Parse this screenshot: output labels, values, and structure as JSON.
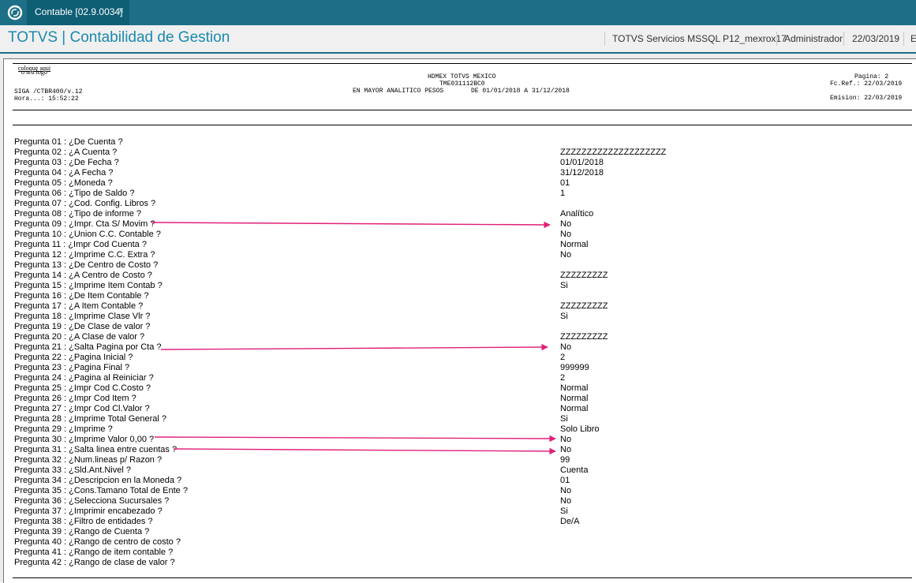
{
  "window": {
    "tab_label": "Contable [02.9.0034]",
    "tab_close": "×"
  },
  "header": {
    "app_title": "TOTVS | Contabilidad de Gestion",
    "server": "TOTVS Servicios MSSQL P12_mexrox17",
    "user": "Administrador",
    "date": "22/03/2019",
    "overflow": "E"
  },
  "report": {
    "logo_line1": "coloque aqui",
    "logo_line2": "o seu logo",
    "company": "HDMEX TOTVS MEXICO",
    "code": "TME031112BC0",
    "title": "EN MAYOR ANALITICO PESOS",
    "period": "DE 01/01/2018 A  31/12/2018",
    "program": "SIGA /CTBR400/v.12",
    "hora": "Hora...: 15:52:22",
    "pagina": "Pagina:     2",
    "fc_ref": "Fc.Ref.: 22/03/2019",
    "emision": "Emision: 22/03/2019"
  },
  "questions": [
    {
      "label": "Pregunta 01 : ¿De Cuenta ?",
      "value": ""
    },
    {
      "label": "Pregunta 02 : ¿A Cuenta ?",
      "value": "ZZZZZZZZZZZZZZZZZZZZ"
    },
    {
      "label": "Pregunta 03 : ¿De Fecha ?",
      "value": "01/01/2018"
    },
    {
      "label": "Pregunta 04 : ¿A Fecha ?",
      "value": "31/12/2018"
    },
    {
      "label": "Pregunta 05 : ¿Moneda ?",
      "value": "01"
    },
    {
      "label": "Pregunta 06 : ¿Tipo de Saldo ?",
      "value": "1"
    },
    {
      "label": "Pregunta 07 : ¿Cod. Config. Libros ?",
      "value": ""
    },
    {
      "label": "Pregunta 08 : ¿Tipo de informe ?",
      "value": "Analítico"
    },
    {
      "label": "Pregunta 09 : ¿Impr. Cta S/ Movim ?",
      "value": "No"
    },
    {
      "label": "Pregunta 10 : ¿Union C.C. Contable ?",
      "value": "No"
    },
    {
      "label": "Pregunta 11 : ¿Impr Cod Cuenta ?",
      "value": "Normal"
    },
    {
      "label": "Pregunta 12 : ¿Imprime C.C. Extra ?",
      "value": "No"
    },
    {
      "label": "Pregunta 13 : ¿De Centro de Costo ?",
      "value": ""
    },
    {
      "label": "Pregunta 14 : ¿A Centro de Costo ?",
      "value": "ZZZZZZZZZ"
    },
    {
      "label": "Pregunta 15 : ¿Imprime Item Contab ?",
      "value": "Si"
    },
    {
      "label": "Pregunta 16 : ¿De Item Contable ?",
      "value": ""
    },
    {
      "label": "Pregunta 17 : ¿A Item Contable ?",
      "value": "ZZZZZZZZZ"
    },
    {
      "label": "Pregunta 18 : ¿Imprime Clase Vlr ?",
      "value": "Si"
    },
    {
      "label": "Pregunta 19 : ¿De Clase de valor ?",
      "value": ""
    },
    {
      "label": "Pregunta 20 : ¿A Clase de valor ?",
      "value": "ZZZZZZZZZ"
    },
    {
      "label": "Pregunta 21 : ¿Salta Pagina por Cta ?",
      "value": "No"
    },
    {
      "label": "Pregunta 22 : ¿Pagina Inicial ?",
      "value": "2"
    },
    {
      "label": "Pregunta 23 : ¿Pagina Final ?",
      "value": "999999"
    },
    {
      "label": "Pregunta 24 : ¿Pagina al Reiniciar ?",
      "value": "2"
    },
    {
      "label": "Pregunta 25 : ¿Impr Cod C.Costo ?",
      "value": "Normal"
    },
    {
      "label": "Pregunta 26 : ¿Impr Cod Item ?",
      "value": "Normal"
    },
    {
      "label": "Pregunta 27 : ¿Impr Cod Cl.Valor ?",
      "value": "Normal"
    },
    {
      "label": "Pregunta 28 : ¿Imprime Total General ?",
      "value": "Si"
    },
    {
      "label": "Pregunta 29 : ¿Imprime ?",
      "value": "Solo Libro"
    },
    {
      "label": "Pregunta 30 : ¿Imprime Valor 0,00 ?",
      "value": "No"
    },
    {
      "label": "Pregunta 31 : ¿Salta linea entre cuentas ?",
      "value": "No"
    },
    {
      "label": "Pregunta 32 : ¿Num.lineas p/  Razon ?",
      "value": "99"
    },
    {
      "label": "Pregunta 33 : ¿Sld.Ant.Nivel ?",
      "value": "Cuenta"
    },
    {
      "label": "Pregunta 34 : ¿Descripcion en la Moneda ?",
      "value": "01"
    },
    {
      "label": "Pregunta 35 : ¿Cons.Tamano Total de Ente ?",
      "value": "No"
    },
    {
      "label": "Pregunta 36 : ¿Selecciona Sucursales ?",
      "value": "No"
    },
    {
      "label": "Pregunta 37 : ¿Imprimir encabezado ?",
      "value": "Si"
    },
    {
      "label": "Pregunta 38 : ¿Filtro de entidades ?",
      "value": "De/A"
    },
    {
      "label": "Pregunta 39 : ¿Rango de Cuenta ?",
      "value": ""
    },
    {
      "label": "Pregunta 40 : ¿Rango de centro de costo ?",
      "value": ""
    },
    {
      "label": "Pregunta 41 : ¿Rango de item contable ?",
      "value": ""
    },
    {
      "label": "Pregunta 42 : ¿Rango de clase de valor ?",
      "value": ""
    }
  ],
  "annotation_color": "#e0207a"
}
